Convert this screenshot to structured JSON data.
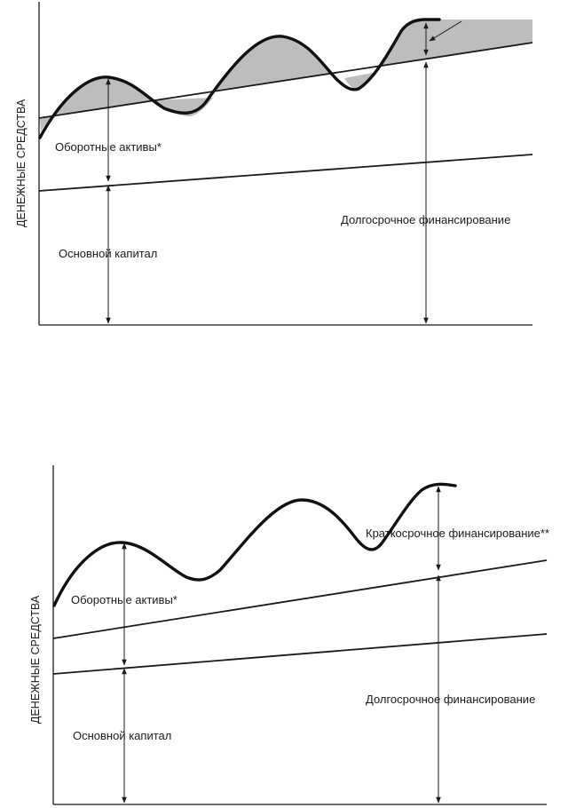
{
  "diagrams": [
    {
      "y_axis_label": "ДЕНЕЖНЫЕ СРЕДСТВА",
      "labels": {
        "current_assets": "Оборотные активы*",
        "fixed_capital": "Основной капитал",
        "long_term_financing": "Долгосрочное финансирование"
      }
    },
    {
      "y_axis_label": "ДЕНЕЖНЫЕ СРЕДСТВА",
      "labels": {
        "current_assets": "Оборотные активы*",
        "fixed_capital": "Основной капитал",
        "long_term_financing": "Долгосрочное финансирование",
        "short_term_financing": "Краткосрочное финансирование**"
      }
    }
  ]
}
